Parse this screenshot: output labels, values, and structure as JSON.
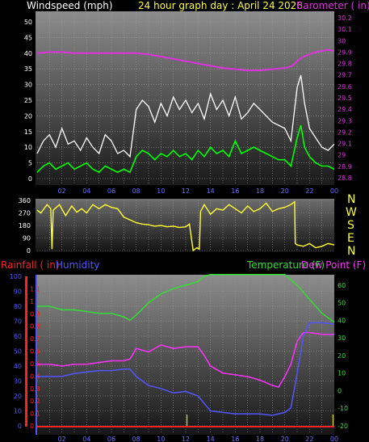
{
  "header": {
    "windspeed_title": "Windspeed (mph)",
    "graph_title": "24 hour graph day : April 24 2026",
    "barometer_title": "Barometer ( in)"
  },
  "lower_header": {
    "rainfall_title": "Rainfall ( in)",
    "humidity_title": "Humidity",
    "temperature_title": "Temperature (F)",
    "dewpoint_title": "Dew Point (F)"
  },
  "colors": {
    "wind_gust": "#ffffff",
    "wind_avg": "#00ff00",
    "barometer": "#dd33dd",
    "direction": "#ffff33",
    "compass_labels": "#ffff33",
    "rainfall": "#ff2222",
    "humidity": "#5555ff",
    "temperature": "#33dd33",
    "dewpoint": "#ff33ff",
    "rain_gauge": "#dddd00"
  },
  "time_axis_labels": [
    "02",
    "04",
    "06",
    "08",
    "10",
    "12",
    "14",
    "16",
    "18",
    "20",
    "22",
    "00"
  ],
  "compass_letters": [
    "N",
    "W",
    "S",
    "E",
    "N"
  ],
  "chart_data": [
    {
      "type": "line",
      "xlabel": "",
      "x_range": [
        0,
        24
      ],
      "ylim": [
        0,
        50
      ],
      "yticks": [
        0,
        5,
        10,
        15,
        20,
        25,
        30,
        35,
        40,
        45,
        50
      ],
      "y2lim": [
        28.8,
        30.2
      ],
      "y2ticks": [
        "28.8",
        "28.9",
        "29",
        "29.1",
        "29.2",
        "29.3",
        "29.4",
        "29.5",
        "29.6",
        "29.7",
        "29.8",
        "29.9",
        "30",
        "30.1",
        "30.2"
      ],
      "series": [
        {
          "name": "Barometer",
          "axis": "right",
          "x": [
            0.0,
            1.0,
            2.0,
            3.0,
            4.0,
            5.0,
            6.0,
            7.0,
            8.0,
            9.0,
            10.0,
            11.0,
            12.0,
            13.0,
            14.0,
            15.0,
            16.0,
            17.0,
            18.0,
            19.0,
            20.0,
            20.6,
            21.0,
            21.5,
            22.0,
            22.5,
            23.0,
            23.5,
            24.0
          ],
          "values": [
            29.89,
            29.9,
            29.9,
            29.89,
            29.89,
            29.89,
            29.89,
            29.89,
            29.89,
            29.88,
            29.86,
            29.84,
            29.82,
            29.8,
            29.78,
            29.76,
            29.75,
            29.74,
            29.74,
            29.75,
            29.76,
            29.78,
            29.82,
            29.86,
            29.88,
            29.9,
            29.91,
            29.92,
            29.91
          ]
        },
        {
          "name": "Wind gust",
          "x": [
            0.0,
            0.5,
            1.0,
            1.5,
            2.0,
            2.5,
            3.0,
            3.5,
            4.0,
            4.5,
            5.0,
            5.5,
            6.0,
            6.5,
            7.0,
            7.5,
            8.0,
            8.5,
            9.0,
            9.5,
            10.0,
            10.5,
            11.0,
            11.5,
            12.0,
            12.5,
            13.0,
            13.5,
            14.0,
            14.5,
            15.0,
            15.5,
            16.0,
            16.5,
            17.0,
            17.5,
            18.0,
            18.5,
            19.0,
            19.5,
            20.0,
            20.5,
            21.0,
            21.3,
            21.6,
            22.0,
            22.5,
            23.0,
            23.5,
            24.0
          ],
          "values": [
            8,
            12,
            14,
            10,
            16,
            11,
            12,
            9,
            13,
            10,
            8,
            14,
            12,
            8,
            9,
            7,
            22,
            25,
            23,
            18,
            24,
            20,
            26,
            22,
            25,
            21,
            24,
            19,
            27,
            22,
            25,
            20,
            26,
            19,
            21,
            24,
            22,
            20,
            18,
            17,
            16,
            12,
            29,
            33,
            24,
            16,
            13,
            10,
            9,
            11
          ]
        },
        {
          "name": "Wind average",
          "x": [
            0.0,
            0.5,
            1.0,
            1.5,
            2.0,
            2.5,
            3.0,
            3.5,
            4.0,
            4.5,
            5.0,
            5.5,
            6.0,
            6.5,
            7.0,
            7.5,
            8.0,
            8.5,
            9.0,
            9.5,
            10.0,
            10.5,
            11.0,
            11.5,
            12.0,
            12.5,
            13.0,
            13.5,
            14.0,
            14.5,
            15.0,
            15.5,
            16.0,
            16.5,
            17.0,
            17.5,
            18.0,
            18.5,
            19.0,
            19.5,
            20.0,
            20.5,
            21.0,
            21.3,
            21.6,
            22.0,
            22.5,
            23.0,
            23.5,
            24.0
          ],
          "values": [
            2,
            4,
            5,
            3,
            4,
            5,
            3,
            4,
            5,
            3,
            2,
            4,
            3,
            2,
            3,
            2,
            7,
            9,
            8,
            6,
            8,
            7,
            9,
            7,
            8,
            6,
            9,
            7,
            10,
            8,
            9,
            7,
            12,
            8,
            9,
            10,
            9,
            8,
            7,
            6,
            6,
            4,
            13,
            17,
            10,
            7,
            5,
            4,
            4,
            3
          ]
        }
      ]
    },
    {
      "type": "line",
      "xlabel": "",
      "x_range": [
        0,
        24
      ],
      "ylim": [
        0,
        360
      ],
      "yticks": [
        0,
        90,
        180,
        270,
        360
      ],
      "series": [
        {
          "name": "Wind direction",
          "x": [
            0.0,
            0.3,
            0.8,
            1.1,
            1.2,
            1.3,
            1.8,
            2.3,
            2.8,
            3.2,
            3.6,
            4.0,
            4.5,
            5.0,
            5.5,
            6.0,
            6.5,
            7.0,
            7.5,
            8.0,
            8.5,
            9.0,
            9.5,
            10.0,
            10.5,
            11.0,
            11.5,
            12.0,
            12.3,
            12.6,
            12.9,
            13.1,
            13.2,
            13.5,
            14.0,
            14.5,
            15.0,
            15.5,
            16.0,
            16.5,
            17.0,
            17.5,
            18.0,
            18.5,
            19.0,
            19.5,
            20.0,
            20.5,
            20.8,
            20.85,
            21.0,
            21.5,
            22.0,
            22.5,
            23.0,
            23.5,
            24.0
          ],
          "values": [
            290,
            270,
            330,
            300,
            10,
            290,
            330,
            250,
            320,
            275,
            300,
            270,
            330,
            300,
            330,
            310,
            300,
            240,
            220,
            200,
            190,
            185,
            175,
            180,
            170,
            175,
            165,
            170,
            190,
            0,
            20,
            10,
            280,
            330,
            260,
            300,
            290,
            330,
            300,
            270,
            320,
            280,
            300,
            340,
            280,
            300,
            310,
            330,
            350,
            50,
            40,
            30,
            50,
            20,
            30,
            50,
            40
          ]
        }
      ]
    },
    {
      "type": "line",
      "xlabel": "",
      "x_range": [
        0,
        24
      ],
      "ylim": [
        0,
        100
      ],
      "yticks": [
        0,
        10,
        20,
        30,
        40,
        50,
        60,
        70,
        80,
        90,
        100
      ],
      "rain_ticks": [
        "0",
        "0.1",
        "0.2",
        "0.3",
        "0.4",
        "0.5",
        "0.6",
        "0.7",
        "0.8",
        "0.9",
        "1",
        "1.1"
      ],
      "rain_lim": [
        0,
        1.2
      ],
      "temp_ticks": [
        -20,
        -10,
        0,
        10,
        20,
        30,
        40,
        50,
        60
      ],
      "temp_lim": [
        -20,
        65
      ],
      "series": [
        {
          "name": "Temperature",
          "axis": "right",
          "x": [
            0.0,
            1.0,
            2.0,
            3.0,
            4.0,
            5.0,
            6.0,
            7.0,
            7.5,
            8.0,
            9.0,
            10.0,
            11.0,
            12.0,
            13.0,
            13.5,
            14.0,
            15.0,
            16.0,
            17.0,
            18.0,
            19.0,
            20.0,
            20.5,
            21.0,
            22.0,
            23.0,
            24.0
          ],
          "values": [
            48,
            48,
            46,
            46,
            45,
            44,
            44,
            42,
            40,
            43,
            50,
            55,
            58,
            60,
            62,
            65,
            66,
            66,
            66,
            66,
            66,
            66,
            66,
            63,
            60,
            52,
            44,
            39
          ]
        },
        {
          "name": "Dew Point",
          "axis": "right",
          "x": [
            0.0,
            1.0,
            2.0,
            3.0,
            4.0,
            5.0,
            6.0,
            7.0,
            7.5,
            8.0,
            9.0,
            10.0,
            11.0,
            12.0,
            13.0,
            13.5,
            14.0,
            15.0,
            16.0,
            17.0,
            18.0,
            19.0,
            19.5,
            20.0,
            20.5,
            21.0,
            21.5,
            22.0,
            23.0,
            24.0
          ],
          "values": [
            15,
            15,
            14,
            15,
            15,
            16,
            17,
            17,
            18,
            24,
            22,
            26,
            24,
            25,
            25,
            20,
            14,
            10,
            9,
            8,
            6,
            3,
            2,
            8,
            15,
            28,
            33,
            33,
            32,
            32
          ]
        },
        {
          "name": "Humidity",
          "x": [
            0.0,
            1.0,
            2.0,
            3.0,
            4.0,
            5.0,
            6.0,
            7.0,
            7.5,
            8.0,
            9.0,
            10.0,
            11.0,
            12.0,
            13.0,
            13.5,
            14.0,
            15.0,
            16.0,
            17.0,
            18.0,
            19.0,
            20.0,
            20.5,
            21.0,
            21.5,
            22.0,
            23.0,
            24.0
          ],
          "values": [
            33,
            33,
            33,
            35,
            36,
            37,
            37,
            38,
            38,
            33,
            27,
            25,
            22,
            23,
            20,
            15,
            10,
            9,
            8,
            8,
            8,
            7,
            9,
            12,
            35,
            60,
            69,
            69,
            68
          ]
        },
        {
          "name": "Rainfall",
          "axis": "left2",
          "x": [
            0,
            24
          ],
          "values": [
            0,
            0
          ]
        }
      ]
    }
  ]
}
